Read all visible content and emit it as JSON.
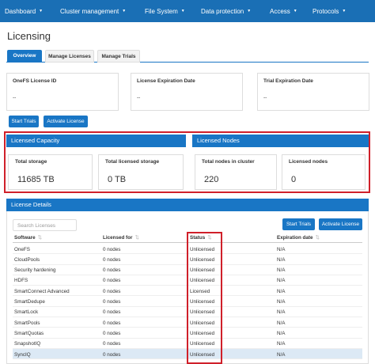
{
  "nav": {
    "items": [
      "Dashboard",
      "Cluster management",
      "File System",
      "Data protection",
      "Access",
      "Protocols"
    ]
  },
  "page": {
    "title": "Licensing",
    "tabs": [
      "Overview",
      "Manage Licenses",
      "Manage Trials"
    ]
  },
  "info": [
    {
      "label": "OneFS License ID",
      "value": "--"
    },
    {
      "label": "License Expiration Date",
      "value": "--"
    },
    {
      "label": "Trial Expiration Date",
      "value": "--"
    }
  ],
  "buttons": [
    "Start Trials",
    "Activate License"
  ],
  "panels": [
    {
      "title": "Licensed Capacity",
      "cards": [
        {
          "label": "Total storage",
          "value": "11685 TB"
        },
        {
          "label": "Total licensed storage",
          "value": "0 TB"
        }
      ]
    },
    {
      "title": "Licensed Nodes",
      "cards": [
        {
          "label": "Total nodes in cluster",
          "value": "220"
        },
        {
          "label": "Licensed nodes",
          "value": "0"
        }
      ]
    }
  ],
  "details": {
    "title": "License Details",
    "search_placeholder": "Search Licenses",
    "buttons": [
      "Start Trials",
      "Activate License"
    ],
    "table": {
      "columns": [
        "Software",
        "Licensed for",
        "Status",
        "Expiration date"
      ],
      "rows": [
        [
          "OneFS",
          "0 nodes",
          "Unlicensed",
          "N/A"
        ],
        [
          "CloudPools",
          "0 nodes",
          "Unlicensed",
          "N/A"
        ],
        [
          "Security hardening",
          "0 nodes",
          "Unlicensed",
          "N/A"
        ],
        [
          "HDFS",
          "0 nodes",
          "Unlicensed",
          "N/A"
        ],
        [
          "SmartConnect Advanced",
          "0 nodes",
          "Licensed",
          "N/A"
        ],
        [
          "SmartDedupe",
          "0 nodes",
          "Unlicensed",
          "N/A"
        ],
        [
          "SmartLock",
          "0 nodes",
          "Unlicensed",
          "N/A"
        ],
        [
          "SmartPools",
          "0 nodes",
          "Unlicensed",
          "N/A"
        ],
        [
          "SmartQuotas",
          "0 nodes",
          "Unlicensed",
          "N/A"
        ],
        [
          "SnapshotIQ",
          "0 nodes",
          "Unlicensed",
          "N/A"
        ],
        [
          "SyncIQ",
          "0 nodes",
          "Unlicensed",
          "N/A"
        ]
      ]
    }
  }
}
